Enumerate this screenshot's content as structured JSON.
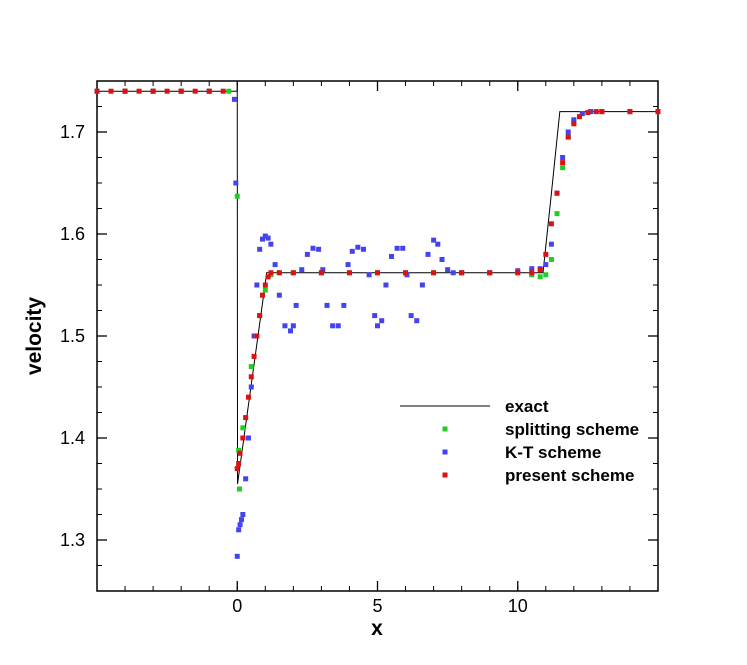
{
  "chart_data": {
    "type": "scatter",
    "title": "",
    "xlabel": "x",
    "ylabel": "velocity",
    "xlim": [
      -5,
      15
    ],
    "ylim": [
      1.25,
      1.75
    ],
    "grid": false,
    "legend_position": "lower-right",
    "x_ticks": [
      0,
      5,
      10
    ],
    "x_tick_labels": [
      "0",
      "5",
      "10"
    ],
    "y_ticks": [
      1.3,
      1.4,
      1.5,
      1.6,
      1.7
    ],
    "y_tick_labels": [
      "1.3",
      "1.4",
      "1.5",
      "1.6",
      "1.7"
    ],
    "series": [
      {
        "name": "exact",
        "style": "line",
        "color": "#000000",
        "x": [
          -5,
          -0.05,
          0.0,
          0.01,
          1.05,
          10.9,
          11.2,
          11.5,
          15
        ],
        "y": [
          1.74,
          1.74,
          1.74,
          1.355,
          1.562,
          1.562,
          1.64,
          1.72,
          1.72
        ]
      },
      {
        "name": "splitting scheme",
        "style": "marker",
        "color": "#22cc22",
        "x": [
          -5,
          -4,
          -3,
          -2,
          -1,
          -0.3,
          0.0,
          0.05,
          0.08,
          0.2,
          0.5,
          0.8,
          1.0,
          1.2,
          1.5,
          2,
          3,
          4,
          5,
          6,
          7,
          8,
          9,
          10,
          10.5,
          10.8,
          11.0,
          11.2,
          11.4,
          11.6,
          11.8,
          12.0,
          12.3,
          12.6,
          13,
          14,
          15
        ],
        "y": [
          1.74,
          1.74,
          1.74,
          1.74,
          1.74,
          1.74,
          1.637,
          1.388,
          1.35,
          1.41,
          1.47,
          1.52,
          1.545,
          1.56,
          1.562,
          1.562,
          1.562,
          1.562,
          1.562,
          1.562,
          1.562,
          1.562,
          1.562,
          1.562,
          1.56,
          1.558,
          1.56,
          1.575,
          1.62,
          1.665,
          1.695,
          1.71,
          1.718,
          1.72,
          1.72,
          1.72,
          1.72
        ]
      },
      {
        "name": "K-T scheme",
        "style": "marker",
        "color": "#4444ee",
        "x": [
          -5,
          -4,
          -3,
          -2,
          -1,
          -0.1,
          -0.05,
          0.0,
          0.05,
          0.1,
          0.15,
          0.2,
          0.3,
          0.4,
          0.5,
          0.6,
          0.7,
          0.8,
          0.9,
          1.0,
          1.1,
          1.2,
          1.35,
          1.5,
          1.7,
          1.9,
          2.0,
          2.1,
          2.3,
          2.5,
          2.7,
          2.9,
          3.05,
          3.2,
          3.4,
          3.6,
          3.8,
          3.95,
          4.1,
          4.3,
          4.5,
          4.7,
          4.9,
          5.0,
          5.15,
          5.3,
          5.5,
          5.7,
          5.9,
          6.05,
          6.2,
          6.4,
          6.6,
          6.8,
          7.0,
          7.15,
          7.3,
          7.5,
          7.7,
          8,
          9,
          10,
          10.5,
          10.8,
          11.0,
          11.2,
          11.4,
          11.6,
          11.8,
          12.0,
          12.3,
          12.6,
          13,
          14,
          15
        ],
        "y": [
          1.74,
          1.74,
          1.74,
          1.74,
          1.74,
          1.732,
          1.65,
          1.284,
          1.31,
          1.315,
          1.32,
          1.325,
          1.36,
          1.4,
          1.45,
          1.5,
          1.55,
          1.585,
          1.595,
          1.598,
          1.596,
          1.59,
          1.57,
          1.54,
          1.51,
          1.505,
          1.51,
          1.53,
          1.565,
          1.58,
          1.586,
          1.585,
          1.565,
          1.53,
          1.51,
          1.51,
          1.53,
          1.57,
          1.583,
          1.587,
          1.585,
          1.56,
          1.52,
          1.51,
          1.515,
          1.55,
          1.578,
          1.586,
          1.586,
          1.56,
          1.52,
          1.515,
          1.55,
          1.58,
          1.594,
          1.59,
          1.575,
          1.565,
          1.562,
          1.562,
          1.562,
          1.564,
          1.566,
          1.566,
          1.57,
          1.59,
          1.64,
          1.675,
          1.7,
          1.712,
          1.718,
          1.72,
          1.72,
          1.72,
          1.72
        ]
      },
      {
        "name": "present scheme",
        "style": "marker",
        "color": "#dd1111",
        "x": [
          -5,
          -4.5,
          -4,
          -3.5,
          -3,
          -2.5,
          -2,
          -1.5,
          -1,
          -0.5,
          0.0,
          0.05,
          0.1,
          0.2,
          0.3,
          0.4,
          0.5,
          0.6,
          0.7,
          0.8,
          0.9,
          1.0,
          1.1,
          1.2,
          1.5,
          2,
          3,
          4,
          5,
          6,
          7,
          8,
          9,
          10,
          10.5,
          10.8,
          11.0,
          11.2,
          11.4,
          11.6,
          11.8,
          12.0,
          12.2,
          12.5,
          12.8,
          13,
          14,
          15
        ],
        "y": [
          1.74,
          1.74,
          1.74,
          1.74,
          1.74,
          1.74,
          1.74,
          1.74,
          1.74,
          1.74,
          1.37,
          1.375,
          1.385,
          1.4,
          1.42,
          1.44,
          1.46,
          1.48,
          1.5,
          1.52,
          1.54,
          1.55,
          1.558,
          1.562,
          1.562,
          1.562,
          1.562,
          1.562,
          1.562,
          1.562,
          1.562,
          1.562,
          1.562,
          1.562,
          1.562,
          1.565,
          1.58,
          1.61,
          1.64,
          1.67,
          1.695,
          1.708,
          1.715,
          1.719,
          1.72,
          1.72,
          1.72,
          1.72
        ]
      }
    ]
  }
}
